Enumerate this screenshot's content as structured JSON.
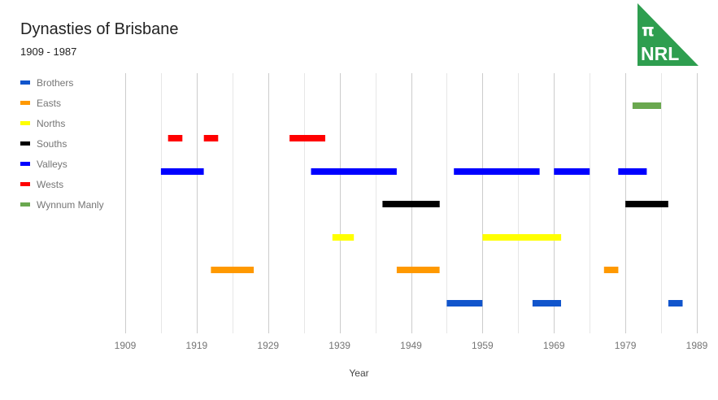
{
  "chart_data": {
    "type": "timeline",
    "title": "Dynasties of Brisbane",
    "subtitle": "1909 - 1987",
    "xlabel": "Year",
    "ylabel": "",
    "xlim": [
      1909,
      1989
    ],
    "x_ticks": [
      1909,
      1919,
      1929,
      1939,
      1949,
      1959,
      1969,
      1979,
      1989
    ],
    "grid": true,
    "legend_position": "left",
    "series": [
      {
        "name": "Brothers",
        "color": "#1155cc",
        "row": 6,
        "periods": [
          [
            1954,
            1959
          ],
          [
            1966,
            1970
          ],
          [
            1985,
            1987
          ]
        ]
      },
      {
        "name": "Easts",
        "color": "#ff9900",
        "row": 5,
        "periods": [
          [
            1921,
            1927
          ],
          [
            1947,
            1953
          ],
          [
            1976,
            1978
          ]
        ]
      },
      {
        "name": "Norths",
        "color": "#ffff00",
        "row": 4,
        "periods": [
          [
            1938,
            1941
          ],
          [
            1959,
            1970
          ]
        ]
      },
      {
        "name": "Souths",
        "color": "#000000",
        "row": 3,
        "periods": [
          [
            1945,
            1953
          ],
          [
            1979,
            1985
          ]
        ]
      },
      {
        "name": "Valleys",
        "color": "#0000ff",
        "row": 2,
        "periods": [
          [
            1914,
            1920
          ],
          [
            1935,
            1947
          ],
          [
            1955,
            1967
          ],
          [
            1969,
            1974
          ],
          [
            1978,
            1982
          ]
        ]
      },
      {
        "name": "Wests",
        "color": "#ff0000",
        "row": 1,
        "periods": [
          [
            1915,
            1917
          ],
          [
            1920,
            1922
          ],
          [
            1932,
            1937
          ]
        ]
      },
      {
        "name": "Wynnum Manly",
        "color": "#6aa84f",
        "row": 0,
        "periods": [
          [
            1980,
            1984
          ]
        ]
      }
    ]
  },
  "header": {
    "title": "Dynasties of Brisbane",
    "subtitle": "1909 - 1987"
  },
  "logo": {
    "symbol": "π",
    "text": "NRL",
    "color": "#2e9e4f"
  },
  "axis": {
    "xlabel": "Year"
  }
}
